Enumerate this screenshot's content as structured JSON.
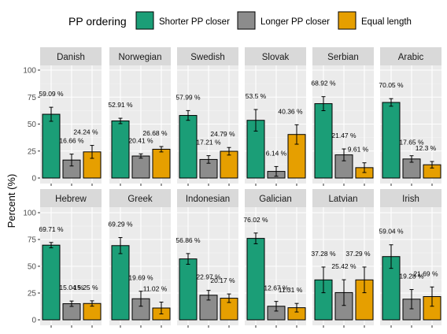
{
  "chart_data": {
    "type": "bar",
    "ylabel": "Percent (%)",
    "legend": {
      "title": "PP ordering",
      "position": "top",
      "entries": [
        {
          "name": "Shorter PP closer",
          "color": "#1b9e77"
        },
        {
          "name": "Longer PP closer",
          "color": "#8c8c8c"
        },
        {
          "name": "Equal length",
          "color": "#e69f00"
        }
      ]
    },
    "ylim": [
      0,
      100
    ],
    "yticks": [
      "0",
      "25",
      "50",
      "75",
      "100"
    ],
    "grid": true,
    "panels": [
      {
        "name": "Danish",
        "values": [
          59.09,
          16.66,
          24.24
        ],
        "labels": [
          "59.09 %",
          "16.66 %",
          "24.24 %"
        ],
        "errors": [
          6.5,
          5.5,
          6.0
        ]
      },
      {
        "name": "Norwegian",
        "values": [
          52.91,
          20.41,
          26.68
        ],
        "labels": [
          "52.91 %",
          "20.41 %",
          "26.68 %"
        ],
        "errors": [
          2.5,
          2.0,
          2.5
        ]
      },
      {
        "name": "Swedish",
        "values": [
          57.99,
          17.21,
          24.79
        ],
        "labels": [
          "57.99 %",
          "17.21 %",
          "24.79 %"
        ],
        "errors": [
          4.5,
          3.5,
          3.5
        ]
      },
      {
        "name": "Slovak",
        "values": [
          53.5,
          6.14,
          40.36
        ],
        "labels": [
          "53.5 %",
          "6.14 %",
          "40.36 %"
        ],
        "errors": [
          10.0,
          4.5,
          9.0
        ]
      },
      {
        "name": "Serbian",
        "values": [
          68.92,
          21.47,
          9.61
        ],
        "labels": [
          "68.92 %",
          "21.47 %",
          "9.61 %"
        ],
        "errors": [
          6.5,
          5.5,
          4.5
        ]
      },
      {
        "name": "Arabic",
        "values": [
          70.05,
          17.65,
          12.3
        ],
        "labels": [
          "70.05 %",
          "17.65 %",
          "12.3 %"
        ],
        "errors": [
          3.5,
          3.0,
          3.0
        ]
      },
      {
        "name": "Hebrew",
        "values": [
          69.71,
          15.04,
          15.25
        ],
        "labels": [
          "69.71 %",
          "15.04 %",
          "15.25 %"
        ],
        "errors": [
          2.5,
          2.5,
          2.5
        ]
      },
      {
        "name": "Greek",
        "values": [
          69.29,
          19.69,
          11.02
        ],
        "labels": [
          "69.29 %",
          "19.69 %",
          "11.02 %"
        ],
        "errors": [
          7.5,
          7.0,
          5.5
        ]
      },
      {
        "name": "Indonesian",
        "values": [
          56.86,
          22.97,
          20.17
        ],
        "labels": [
          "56.86 %",
          "22.97 %",
          "20.17 %"
        ],
        "errors": [
          5.0,
          4.5,
          4.0
        ]
      },
      {
        "name": "Galician",
        "values": [
          76.02,
          12.67,
          11.31
        ],
        "labels": [
          "76.02 %",
          "12.67 %",
          "11.31 %"
        ],
        "errors": [
          5.0,
          4.5,
          4.0
        ]
      },
      {
        "name": "Latvian",
        "values": [
          37.28,
          25.42,
          37.29
        ],
        "labels": [
          "37.28 %",
          "25.42 %",
          "37.29 %"
        ],
        "errors": [
          12.0,
          12.0,
          12.0
        ]
      },
      {
        "name": "Irish",
        "values": [
          59.04,
          19.28,
          21.69
        ],
        "labels": [
          "59.04 %",
          "19.28 %",
          "21.69 %"
        ],
        "errors": [
          11.0,
          9.0,
          9.0
        ]
      }
    ]
  }
}
